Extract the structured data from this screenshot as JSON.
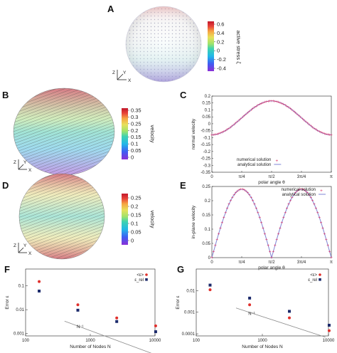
{
  "figure": {
    "panel_labels": [
      "A",
      "B",
      "C",
      "D",
      "E",
      "F",
      "G"
    ],
    "axes_triad": {
      "z": "Z",
      "y": "Y",
      "x": "X"
    }
  },
  "colorbars": [
    {
      "panel": "A",
      "label": "active stress ζ",
      "ticks": [
        "0.6",
        "0.4",
        "0.2",
        "0",
        "-0.2",
        "-0.4"
      ]
    },
    {
      "panel": "B",
      "label": "velocity",
      "ticks": [
        "0.35",
        "0.3",
        "0.25",
        "0.2",
        "0.15",
        "0.1",
        "0.05",
        "0"
      ]
    },
    {
      "panel": "D",
      "label": "velocity",
      "ticks": [
        "0.25",
        "0.2",
        "0.15",
        "0.1",
        "0.05",
        "0"
      ]
    }
  ],
  "colors": {
    "colormap": [
      "#8b2fd6",
      "#3f5df2",
      "#22b7e8",
      "#3fd2b0",
      "#9fe36c",
      "#e8e05a",
      "#f6a443",
      "#e8443a",
      "#c2182b"
    ],
    "numerical": "#d6205a",
    "analytical": "#8a8fd8",
    "mean_error": "#e0302c",
    "rel_error": "#1c2a6b",
    "slope_line": "#8c8c8c"
  },
  "chart_data": [
    {
      "panel": "C",
      "type": "line",
      "xlabel": "polar angle θ",
      "ylabel": "normal velocity",
      "xlim": [
        0,
        3.14159
      ],
      "ylim": [
        -0.35,
        0.2
      ],
      "xticks": [
        "0",
        "π/4",
        "π/2",
        "3π/4",
        "π"
      ],
      "yticks": [
        "0.2",
        "0.15",
        "0.1",
        "0.05",
        "0",
        "-0.05",
        "-0.1",
        "-0.15",
        "-0.2",
        "-0.25",
        "-0.3",
        "-0.35"
      ],
      "series": [
        {
          "name": "numerical solution",
          "style": "points",
          "amp": 0.245,
          "offset": -0.08,
          "shape": "sin2"
        },
        {
          "name": "analytical solution",
          "style": "line",
          "amp": 0.245,
          "offset": -0.08,
          "shape": "sin2"
        }
      ],
      "legend": "bottom-center"
    },
    {
      "panel": "E",
      "type": "line",
      "xlabel": "polar angle θ",
      "ylabel": "in-plane velocity",
      "xlim": [
        0,
        3.14159
      ],
      "ylim": [
        0,
        0.25
      ],
      "xticks": [
        "0",
        "π/4",
        "π/2",
        "3π/4",
        "π"
      ],
      "yticks": [
        "0.25",
        "0.2",
        "0.15",
        "0.1",
        "0.05",
        "0"
      ],
      "series": [
        {
          "name": "numerical solution",
          "style": "points",
          "amp": 0.24,
          "offset": 0,
          "shape": "abssin2"
        },
        {
          "name": "analytical solution",
          "style": "line",
          "amp": 0.24,
          "offset": 0,
          "shape": "abssin2"
        }
      ],
      "legend": "top-right"
    },
    {
      "panel": "F",
      "type": "scatter",
      "xscale": "log",
      "yscale": "log",
      "xlabel": "Number of Nodes N",
      "ylabel": "Error ε",
      "xlim": [
        100,
        10000
      ],
      "ylim": [
        0.0008,
        0.5
      ],
      "xticks": [
        "100",
        "1000",
        "10000"
      ],
      "yticks": [
        "0.1",
        "0.01",
        "0.001"
      ],
      "series": [
        {
          "name": "<ε>",
          "marker": "circle",
          "x": [
            162,
            642,
            2562,
            10242
          ],
          "y": [
            0.15,
            0.016,
            0.0045,
            0.0021
          ]
        },
        {
          "name": "ε_rel",
          "marker": "square",
          "x": [
            162,
            642,
            2562,
            10242
          ],
          "y": [
            0.06,
            0.0095,
            0.0032,
            0.0012
          ]
        }
      ],
      "slope_label": "N⁻¹",
      "legend": "top-right"
    },
    {
      "panel": "G",
      "type": "scatter",
      "xscale": "log",
      "yscale": "log",
      "xlabel": "Number of Nodes N",
      "ylabel": "Error ε",
      "xlim": [
        100,
        10000
      ],
      "ylim": [
        8e-05,
        0.1
      ],
      "xticks": [
        "100",
        "1000",
        "10000"
      ],
      "yticks": [
        "0.01",
        "0.001",
        "0.0001"
      ],
      "series": [
        {
          "name": "<ε>",
          "marker": "circle",
          "x": [
            162,
            642,
            2562,
            10242
          ],
          "y": [
            0.011,
            0.0022,
            0.00055,
            0.00014
          ]
        },
        {
          "name": "ε_rel",
          "marker": "square",
          "x": [
            162,
            642,
            2562,
            10242
          ],
          "y": [
            0.018,
            0.0045,
            0.0011,
            0.00025
          ]
        }
      ],
      "slope_label": "N⁻¹",
      "legend": "top-right"
    }
  ]
}
